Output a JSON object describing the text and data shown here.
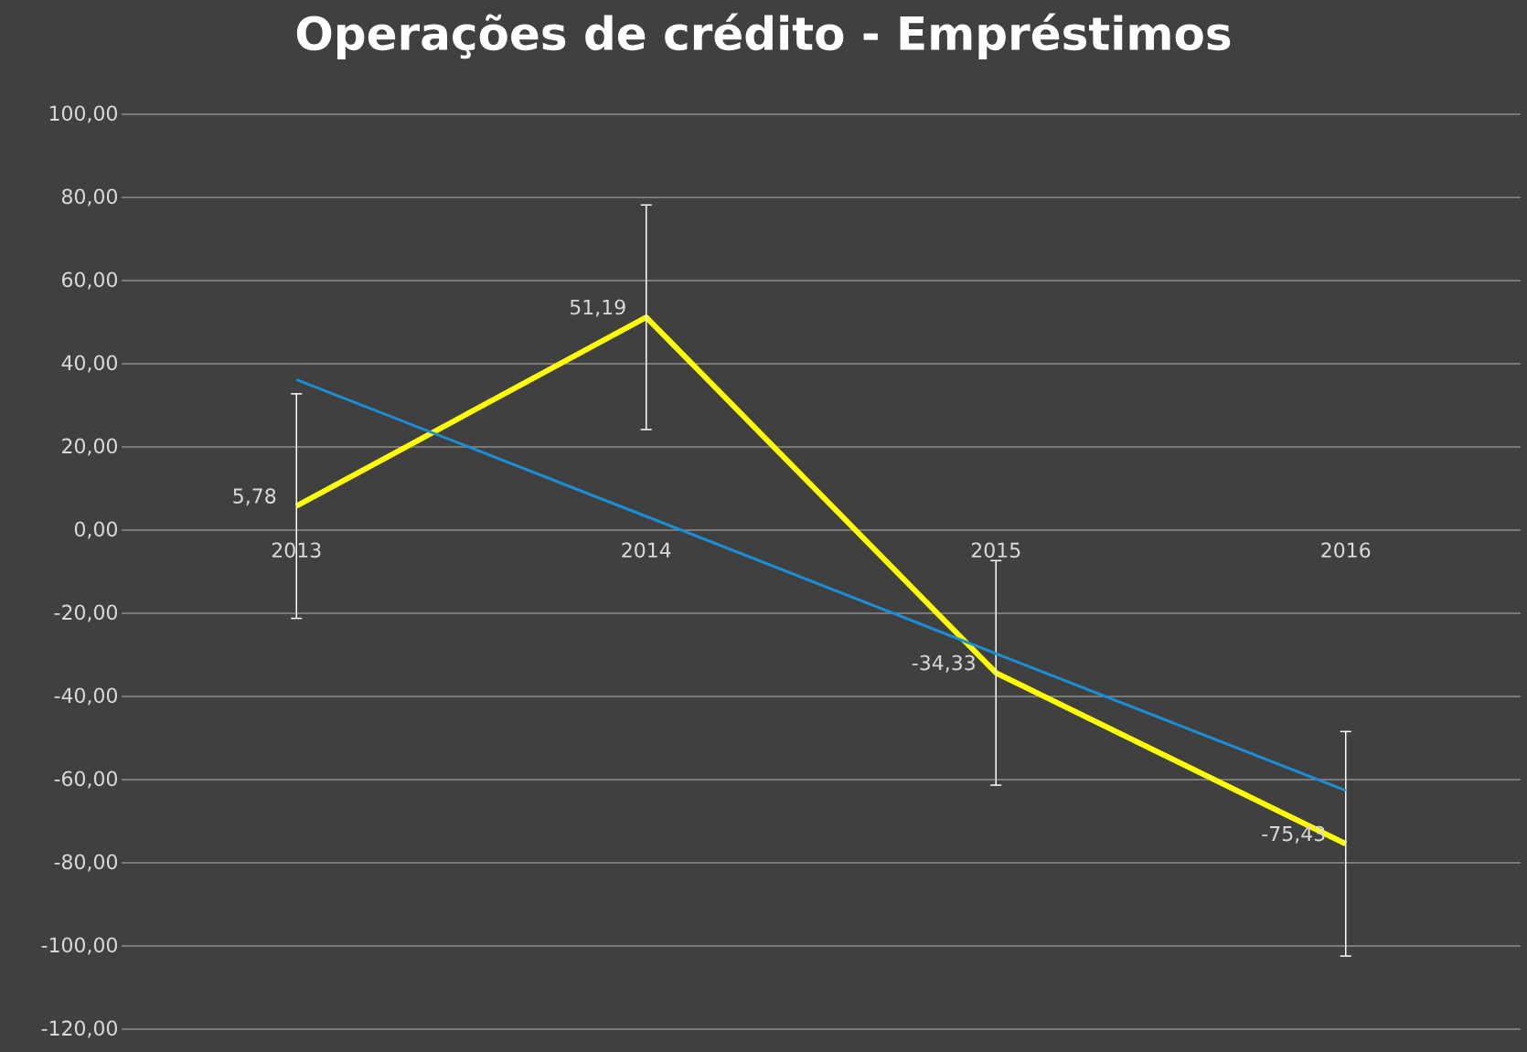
{
  "chart_data": {
    "type": "line",
    "title": "Operações de crédito - Empréstimos",
    "categories": [
      "2013",
      "2014",
      "2015",
      "2016"
    ],
    "series": [
      {
        "color": "#ffff00",
        "values": [
          5.78,
          51.19,
          -34.33,
          -75.43
        ],
        "errors": [
          27,
          27,
          27,
          27
        ],
        "value_labels": [
          "5,78",
          "51,19",
          "-34,33",
          "-75,43"
        ]
      },
      {
        "color": "#1a8fd6",
        "values": [
          36.2,
          3.3,
          -29.7,
          -62.6
        ]
      }
    ],
    "ylim": [
      -120,
      100
    ],
    "yticks": [
      {
        "value": -120,
        "label": "-120,00"
      },
      {
        "value": -100,
        "label": "-100,00"
      },
      {
        "value": -80,
        "label": "-80,00"
      },
      {
        "value": -60,
        "label": "-60,00"
      },
      {
        "value": -40,
        "label": "-40,00"
      },
      {
        "value": -20,
        "label": "-20,00"
      },
      {
        "value": 0,
        "label": "0,00"
      },
      {
        "value": 20,
        "label": "20,00"
      },
      {
        "value": 40,
        "label": "40,00"
      },
      {
        "value": 60,
        "label": "60,00"
      },
      {
        "value": 80,
        "label": "80,00"
      },
      {
        "value": 100,
        "label": "100,00"
      }
    ],
    "grid": "y",
    "marker": "none",
    "line_style": "solid"
  }
}
